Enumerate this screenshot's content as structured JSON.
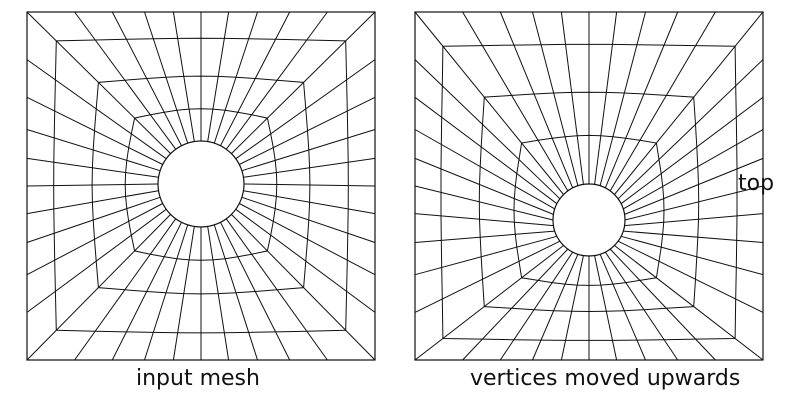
{
  "panels": [
    {
      "id": "left",
      "caption": "input mesh"
    },
    {
      "id": "right",
      "caption": "vertices moved upwards"
    }
  ],
  "side_label": "top",
  "colors": {
    "stroke": "#111111",
    "background": "#ffffff"
  }
}
